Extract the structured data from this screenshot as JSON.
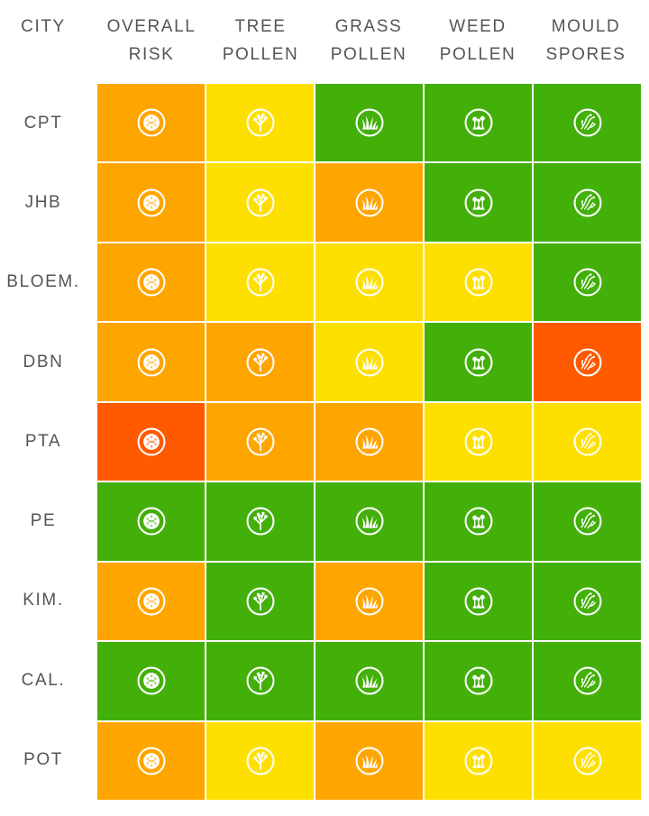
{
  "headers": {
    "city": "CITY",
    "overall": [
      "OVERALL",
      "RISK"
    ],
    "tree": [
      "TREE",
      "POLLEN"
    ],
    "grass": [
      "GRASS",
      "POLLEN"
    ],
    "weed": [
      "WEED",
      "POLLEN"
    ],
    "mould": [
      "MOULD",
      "SPORES"
    ]
  },
  "colors": {
    "low": "#43b00a",
    "moderate": "#fee000",
    "high": "#ffa500",
    "veryhigh": "#ff5a00"
  },
  "columns": [
    {
      "key": "overall",
      "icon": "pollen-grain-icon"
    },
    {
      "key": "tree",
      "icon": "tree-icon"
    },
    {
      "key": "grass",
      "icon": "grass-icon"
    },
    {
      "key": "weed",
      "icon": "weed-flower-icon"
    },
    {
      "key": "mould",
      "icon": "mould-spores-icon"
    }
  ],
  "rows": [
    {
      "city": "CPT",
      "levels": [
        "high",
        "moderate",
        "low",
        "low",
        "low"
      ]
    },
    {
      "city": "JHB",
      "levels": [
        "high",
        "moderate",
        "high",
        "low",
        "low"
      ]
    },
    {
      "city": "BLOEM.",
      "levels": [
        "high",
        "moderate",
        "moderate",
        "moderate",
        "low"
      ]
    },
    {
      "city": "DBN",
      "levels": [
        "high",
        "high",
        "moderate",
        "low",
        "veryhigh"
      ]
    },
    {
      "city": "PTA",
      "levels": [
        "veryhigh",
        "high",
        "high",
        "moderate",
        "moderate"
      ]
    },
    {
      "city": "PE",
      "levels": [
        "low",
        "low",
        "low",
        "low",
        "low"
      ]
    },
    {
      "city": "KIM.",
      "levels": [
        "high",
        "low",
        "high",
        "low",
        "low"
      ]
    },
    {
      "city": "CAL.",
      "levels": [
        "low",
        "low",
        "low",
        "low",
        "low"
      ]
    },
    {
      "city": "POT",
      "levels": [
        "high",
        "moderate",
        "high",
        "moderate",
        "moderate"
      ]
    }
  ]
}
